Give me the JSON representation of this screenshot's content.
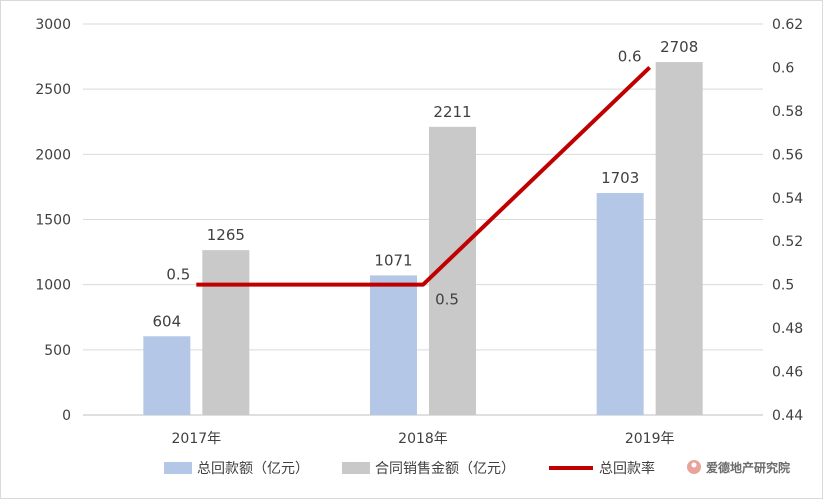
{
  "chart_data": {
    "type": "bar",
    "categories": [
      "2017年",
      "2018年",
      "2019年"
    ],
    "series": [
      {
        "name": "总回款额（亿元）",
        "type": "bar",
        "axis": "left",
        "color": "#b4c7e7",
        "values": [
          604,
          1071,
          1703
        ],
        "labels": [
          "604",
          "1071",
          "1703"
        ]
      },
      {
        "name": "合同销售金额（亿元）",
        "type": "bar",
        "axis": "left",
        "color": "#c9c9c9",
        "values": [
          1265,
          2211,
          2708
        ],
        "labels": [
          "1265",
          "2211",
          "2708"
        ]
      },
      {
        "name": "总回款率",
        "type": "line",
        "axis": "right",
        "color": "#c00000",
        "values": [
          0.5,
          0.5,
          0.6
        ],
        "labels": [
          "0.5",
          "0.5",
          "0.6"
        ]
      }
    ],
    "y_left": {
      "ylim": [
        0,
        3000
      ],
      "ticks": [
        "0",
        "500",
        "1000",
        "1500",
        "2000",
        "2500",
        "3000"
      ]
    },
    "y_right": {
      "ylim": [
        0.44,
        0.62
      ],
      "ticks": [
        "0.44",
        "0.46",
        "0.48",
        "0.5",
        "0.52",
        "0.54",
        "0.56",
        "0.58",
        "0.6",
        "0.62"
      ]
    },
    "grid": true,
    "legend_position": "bottom",
    "watermark": "爱德地产研究院"
  }
}
